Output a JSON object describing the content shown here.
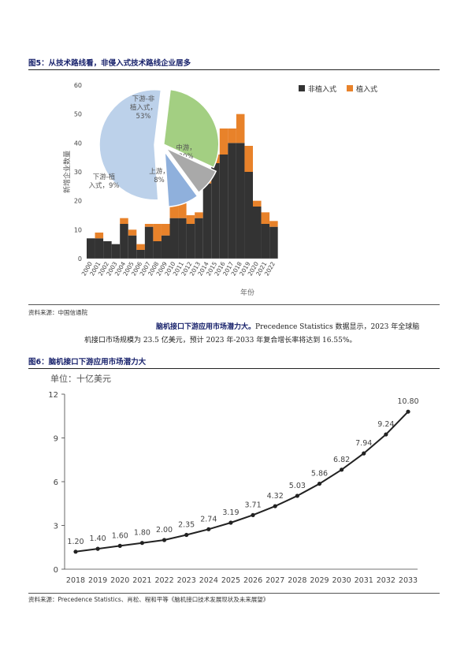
{
  "figure5": {
    "title": "图5：从技术路线看，非侵入式技术路线企业居多",
    "source": "资料来源：中国信通院",
    "chart_data": {
      "type": "bar",
      "stacked": true,
      "ylabel": "新增企业数量",
      "xlabel": "年份",
      "ylim": [
        0,
        60
      ],
      "yticks": [
        0,
        10,
        20,
        30,
        40,
        50,
        60
      ],
      "legend_position": "top-right",
      "categories": [
        "2000",
        "2001",
        "2002",
        "2003",
        "2004",
        "2005",
        "2006",
        "2007",
        "2008",
        "2009",
        "2010",
        "2011",
        "2012",
        "2013",
        "2014",
        "2015",
        "2016",
        "2017",
        "2018",
        "2019",
        "2020",
        "2021",
        "2022"
      ],
      "series": [
        {
          "name": "非植入式",
          "color": "#333333",
          "values": [
            7,
            7,
            6,
            5,
            12,
            8,
            3,
            11,
            6,
            8,
            14,
            14,
            12,
            14,
            26,
            33,
            36,
            40,
            40,
            30,
            18,
            12,
            11
          ]
        },
        {
          "name": "植入式",
          "color": "#e8822a",
          "values": [
            0,
            2,
            0,
            0,
            2,
            2,
            2,
            1,
            6,
            4,
            7,
            7,
            3,
            2,
            2,
            3,
            9,
            5,
            10,
            9,
            2,
            4,
            2
          ]
        }
      ]
    },
    "pie": {
      "type": "pie",
      "slices": [
        {
          "label": "下游-非植入式，53%",
          "lines": [
            "下游-非",
            "植入式，",
            "53%"
          ],
          "value": 53,
          "color": "#bcd1ea"
        },
        {
          "label": "中游，30%",
          "lines": [
            "中游，",
            "30%"
          ],
          "value": 30,
          "color": "#a3cf82"
        },
        {
          "label": "上游，8%",
          "lines": [
            "上游，",
            "8%"
          ],
          "value": 8,
          "color": "#a9a9a9"
        },
        {
          "label": "下游-植入式，9%",
          "lines": [
            "下游-植",
            "入式，9%"
          ],
          "value": 9,
          "color": "#8fb0dc"
        }
      ]
    }
  },
  "paragraph": {
    "lead": "脑机接口下游应用市场潜力大。",
    "line1_rest": "Precedence Statistics 数据显示，2023 年全球脑",
    "line2": "机接口市场规模为 23.5 亿美元，预计 2023 年-2033 年复合增长率将达到 16.55%。"
  },
  "figure6": {
    "title": "图6：脑机接口下游应用市场潜力大",
    "source": "资料来源：Precedence Statistics、肖松、程和平等《脑机接口技术发展现状及未来展望》",
    "chart_data": {
      "type": "line",
      "title": "单位：十亿美元",
      "ylim": [
        0,
        12
      ],
      "yticks": [
        0,
        3,
        6,
        9,
        12
      ],
      "x": [
        "2018",
        "2019",
        "2020",
        "2021",
        "2022",
        "2023",
        "2024",
        "2025",
        "2026",
        "2027",
        "2028",
        "2029",
        "2030",
        "2031",
        "2032",
        "2033"
      ],
      "values": [
        1.2,
        1.4,
        1.6,
        1.8,
        2.0,
        2.35,
        2.74,
        3.19,
        3.71,
        4.32,
        5.03,
        5.86,
        6.82,
        7.94,
        9.24,
        10.8
      ],
      "value_labels": [
        "1.20",
        "1.40",
        "1.60",
        "1.80",
        "2.00",
        "2.35",
        "2.74",
        "3.19",
        "3.71",
        "4.32",
        "5.03",
        "5.86",
        "6.82",
        "7.94",
        "9.24",
        "10.80"
      ],
      "grid": false
    }
  }
}
